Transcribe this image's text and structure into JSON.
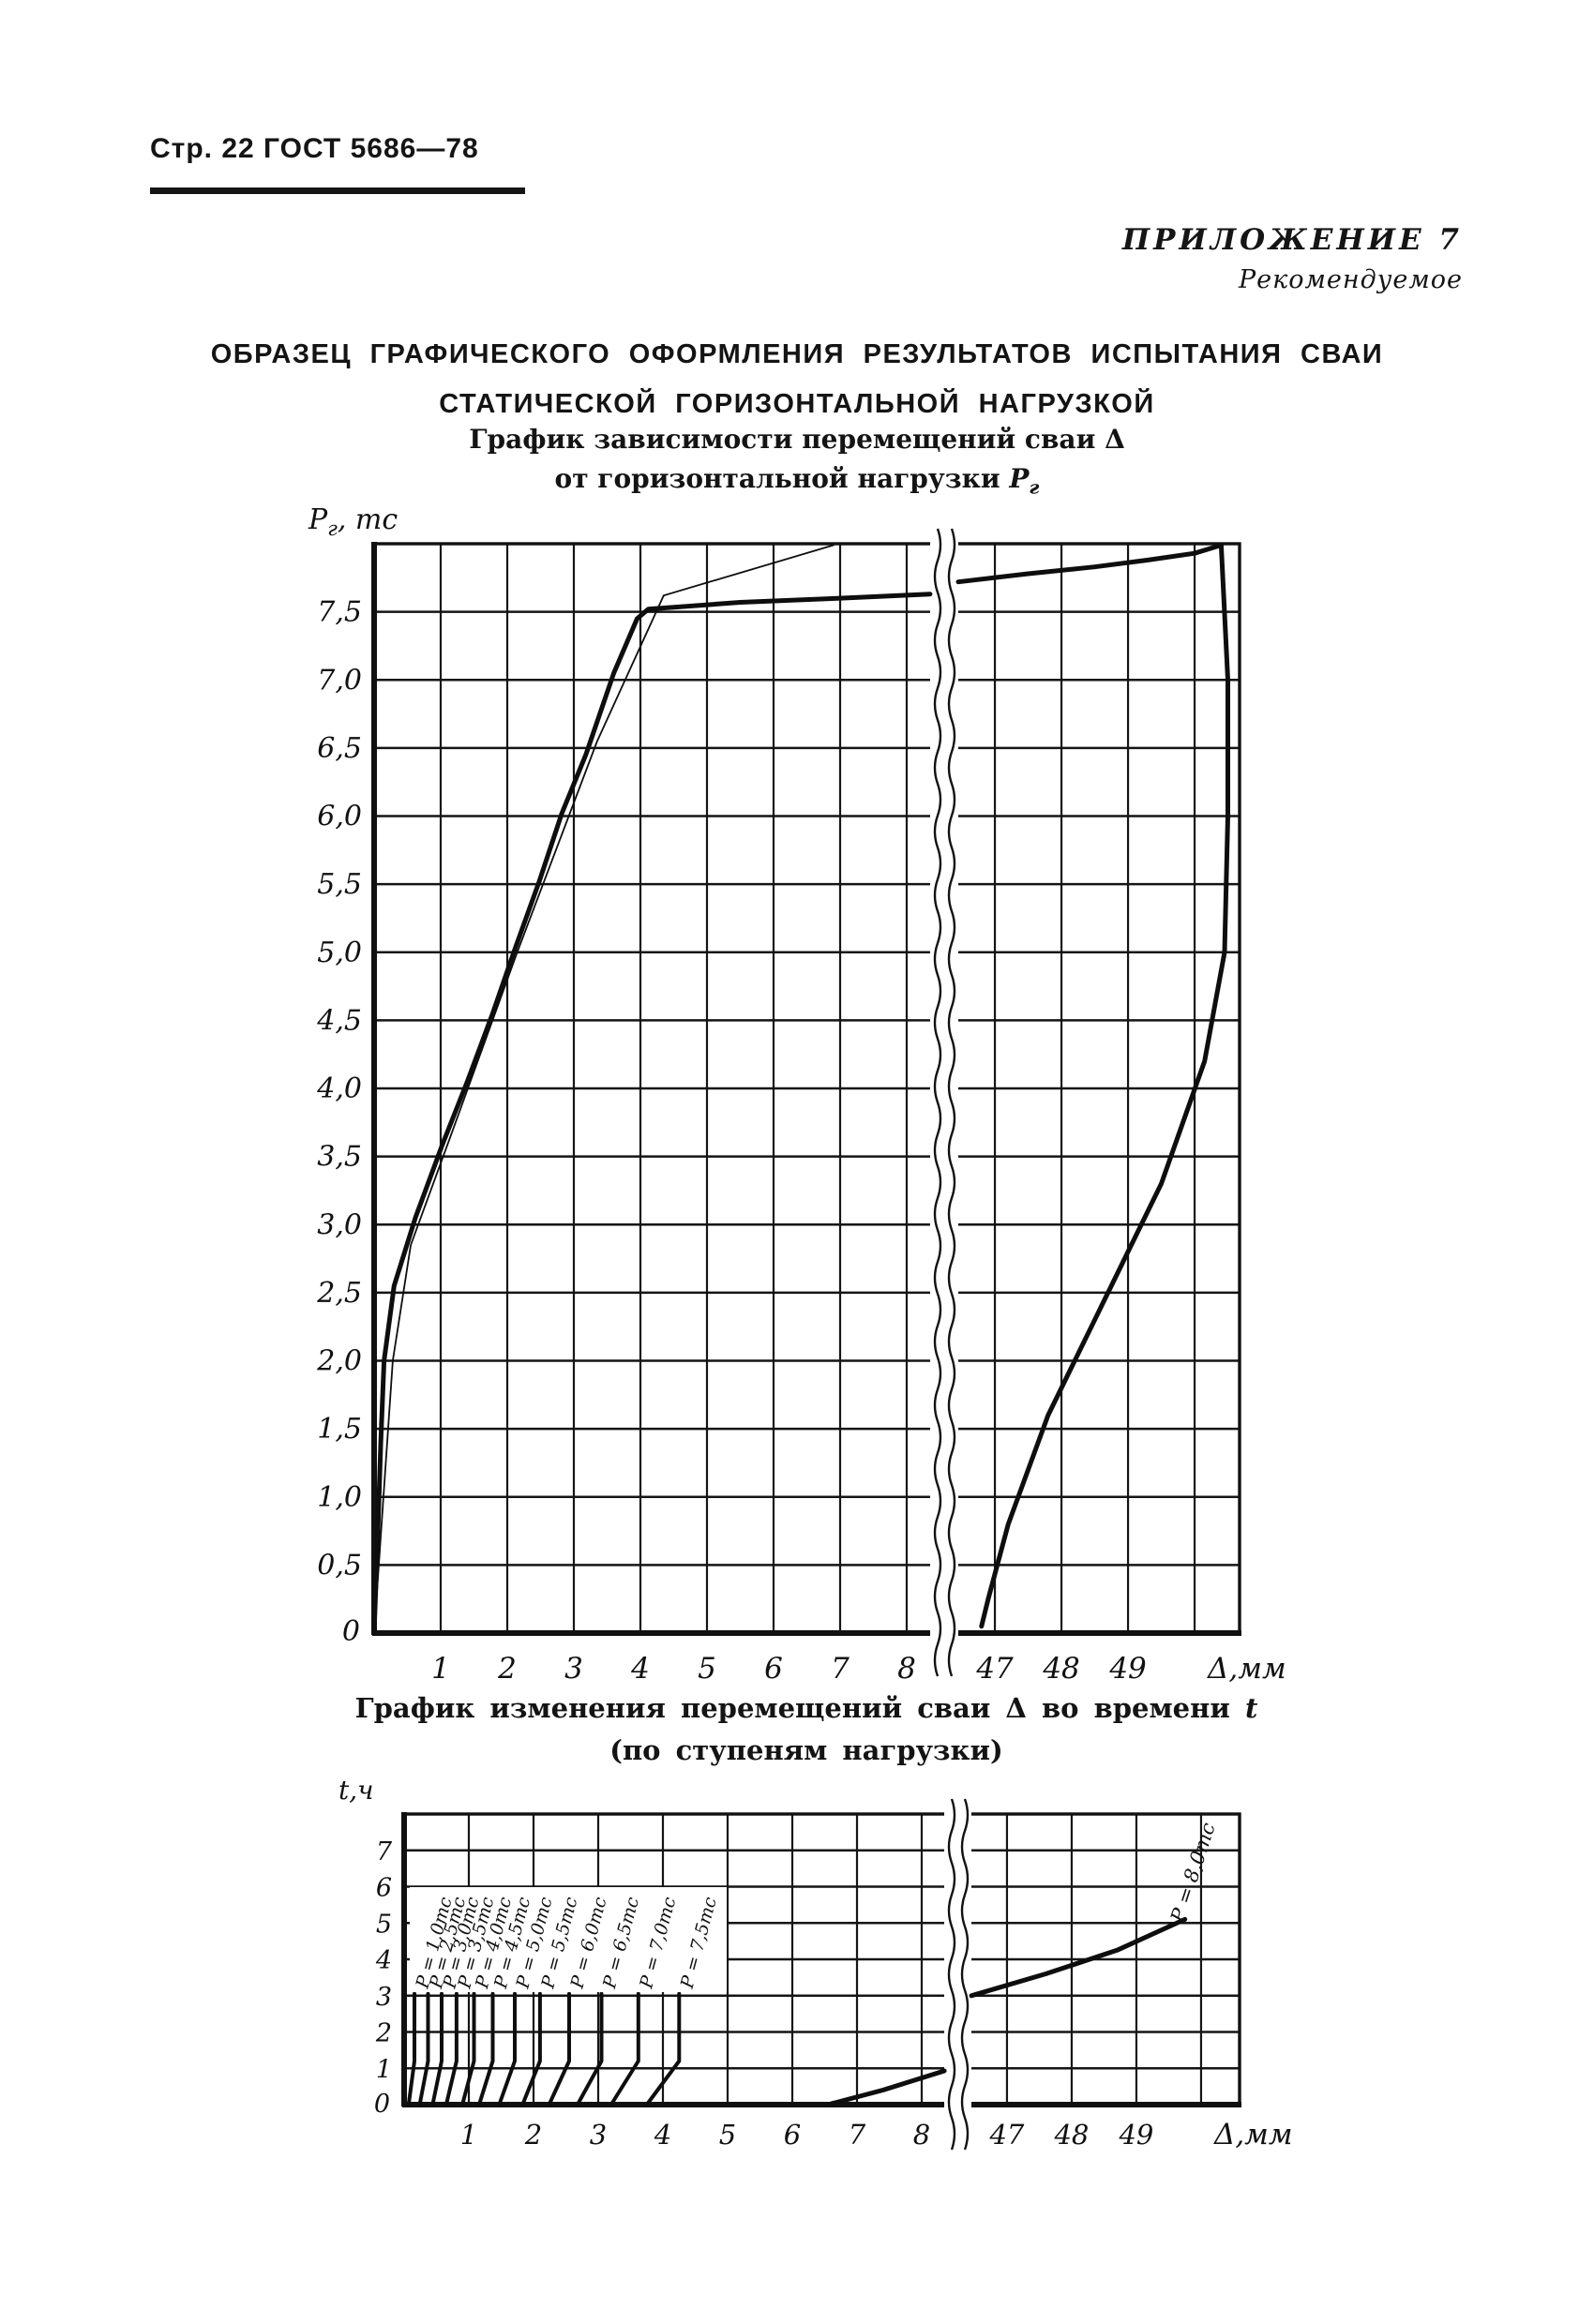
{
  "page": {
    "header": "Стр. 22 ГОСТ 5686—78",
    "annex_label": "ПРИЛОЖЕНИЕ 7",
    "annex_note": "Рекомендуемое",
    "title_line1": "ОБРАЗЕЦ ГРАФИЧЕСКОГО ОФОРМЛЕНИЯ РЕЗУЛЬТАТОВ ИСПЫТАНИЯ СВАИ",
    "title_line2": "СТАТИЧЕСКОЙ ГОРИЗОНТАЛЬНОЙ НАГРУЗКОЙ"
  },
  "chart1": {
    "caption_line1": "График зависимости перемещений сваи Δ",
    "caption_line2_text": "от горизонтальной нагрузки ",
    "caption_line2_symbol": "Р",
    "caption_line2_sub": "г",
    "y_axis_title": {
      "symbol": "Р",
      "sub": "г",
      "unit": ", тс"
    },
    "x_axis_unit": "Δ,мм",
    "origin_label": "0",
    "y_tick_labels": [
      {
        "v": 7.5,
        "t": "7,5"
      },
      {
        "v": 7.0,
        "t": "7,0"
      },
      {
        "v": 6.5,
        "t": "6,5"
      },
      {
        "v": 6.0,
        "t": "6,0"
      },
      {
        "v": 5.5,
        "t": "5,5"
      },
      {
        "v": 5.0,
        "t": "5,0"
      },
      {
        "v": 4.5,
        "t": "4,5"
      },
      {
        "v": 4.0,
        "t": "4,0"
      },
      {
        "v": 3.5,
        "t": "3,5"
      },
      {
        "v": 3.0,
        "t": "3,0"
      },
      {
        "v": 2.5,
        "t": "2,5"
      },
      {
        "v": 2.0,
        "t": "2,0"
      },
      {
        "v": 1.5,
        "t": "1,5"
      },
      {
        "v": 1.0,
        "t": "1,0"
      },
      {
        "v": 0.5,
        "t": "0,5"
      }
    ],
    "x_tick_labels_left": [
      {
        "v": 1,
        "t": "1"
      },
      {
        "v": 2,
        "t": "2"
      },
      {
        "v": 3,
        "t": "3"
      },
      {
        "v": 4,
        "t": "4"
      },
      {
        "v": 5,
        "t": "5"
      },
      {
        "v": 6,
        "t": "6"
      },
      {
        "v": 7,
        "t": "7"
      },
      {
        "v": 8,
        "t": "8"
      }
    ],
    "x_tick_labels_right": [
      {
        "v": 47,
        "t": "47"
      },
      {
        "v": 48,
        "t": "48"
      },
      {
        "v": 49,
        "t": "49"
      }
    ]
  },
  "chart2": {
    "caption_line1_text": "График изменения перемещений сваи Δ во времени ",
    "caption_line1_symbol": "t",
    "caption_line2": "(по ступеням нагрузки)",
    "y_axis_title": {
      "symbol": "t",
      "sub": "",
      "unit": ",ч"
    },
    "x_axis_unit": "Δ,мм",
    "origin_label": "0",
    "y_tick_labels": [
      {
        "v": 7,
        "t": "7"
      },
      {
        "v": 6,
        "t": "6"
      },
      {
        "v": 5,
        "t": "5"
      },
      {
        "v": 4,
        "t": "4"
      },
      {
        "v": 3,
        "t": "3"
      },
      {
        "v": 2,
        "t": "2"
      },
      {
        "v": 1,
        "t": "1"
      }
    ],
    "x_tick_labels_left": [
      {
        "v": 1,
        "t": "1"
      },
      {
        "v": 2,
        "t": "2"
      },
      {
        "v": 3,
        "t": "3"
      },
      {
        "v": 4,
        "t": "4"
      },
      {
        "v": 5,
        "t": "5"
      },
      {
        "v": 6,
        "t": "6"
      },
      {
        "v": 7,
        "t": "7"
      },
      {
        "v": 8,
        "t": "8"
      }
    ],
    "x_tick_labels_right": [
      {
        "v": 47,
        "t": "47"
      },
      {
        "v": 48,
        "t": "48"
      },
      {
        "v": 49,
        "t": "49"
      }
    ],
    "step_labels": [
      "Р = 1,0тс",
      "Р = 2,5тс",
      "Р = 3,0тс",
      "Р = 3,5тс",
      "Р = 4,0тс",
      "Р = 4,5тс",
      "Р = 5,0тс",
      "Р = 5,5тс",
      "Р = 6,0тс",
      "Р = 6,5тс",
      "Р = 7,0тс",
      "Р = 7,5тс"
    ],
    "p8_label": "Р = 8,0тс"
  },
  "chart_data": [
    {
      "type": "line",
      "title": "График зависимости перемещений сваи Δ от горизонтальной нагрузки Рг",
      "xlabel": "Δ, мм",
      "ylabel": "Рг, тс",
      "grid": true,
      "ylim": [
        0,
        8
      ],
      "xlim_left_segment": [
        0,
        8.5
      ],
      "xlim_right_segment": [
        46.4,
        50.8
      ],
      "x_axis_break": [
        8.5,
        46.4
      ],
      "y_gridlines": [
        0.5,
        1,
        1.5,
        2,
        2.5,
        3,
        3.5,
        4,
        4.5,
        5,
        5.5,
        6,
        6.5,
        7,
        7.5
      ],
      "x_gridlines": [
        1,
        2,
        3,
        4,
        5,
        6,
        7,
        8,
        47,
        48,
        49,
        50
      ],
      "series": [
        {
          "name": "loading_branch",
          "style": "thick",
          "points": [
            [
              0,
              0
            ],
            [
              0.06,
              0.8
            ],
            [
              0.1,
              1.4
            ],
            [
              0.15,
              2.0
            ],
            [
              0.3,
              2.55
            ],
            [
              0.62,
              3.05
            ],
            [
              1.02,
              3.58
            ],
            [
              1.4,
              4.05
            ],
            [
              1.78,
              4.55
            ],
            [
              2.12,
              5.03
            ],
            [
              2.48,
              5.52
            ],
            [
              2.82,
              6.02
            ],
            [
              3.18,
              6.45
            ],
            [
              3.6,
              7.05
            ],
            [
              3.95,
              7.45
            ],
            [
              4.12,
              7.52
            ],
            [
              5.5,
              7.57
            ],
            [
              7.0,
              7.6
            ],
            [
              8.35,
              7.63
            ],
            [
              46.45,
              7.72
            ],
            [
              47.5,
              7.78
            ],
            [
              48.5,
              7.83
            ],
            [
              49.3,
              7.88
            ],
            [
              50.0,
              7.93
            ],
            [
              50.4,
              7.99
            ]
          ]
        },
        {
          "name": "reference_line",
          "style": "thin",
          "points": [
            [
              0,
              0
            ],
            [
              0.28,
              2.0
            ],
            [
              0.55,
              2.85
            ],
            [
              1.15,
              3.65
            ],
            [
              2.15,
              5.0
            ],
            [
              3.35,
              6.55
            ],
            [
              4.35,
              7.62
            ],
            [
              6.9,
              7.99
            ]
          ]
        },
        {
          "name": "unloading_branch",
          "style": "thick",
          "points": [
            [
              50.4,
              7.99
            ],
            [
              50.5,
              7.0
            ],
            [
              50.5,
              6.0
            ],
            [
              50.45,
              5.0
            ],
            [
              50.15,
              4.2
            ],
            [
              49.5,
              3.3
            ],
            [
              48.6,
              2.4
            ],
            [
              47.8,
              1.6
            ],
            [
              47.2,
              0.8
            ],
            [
              46.9,
              0.25
            ],
            [
              46.8,
              0.05
            ]
          ]
        }
      ]
    },
    {
      "type": "line",
      "title": "График изменения перемещений сваи Δ во времени t (по ступеням нагрузки)",
      "xlabel": "Δ, мм",
      "ylabel": "t, ч",
      "grid": true,
      "ylim": [
        0,
        8
      ],
      "xlim_left_segment": [
        0,
        8.5
      ],
      "xlim_right_segment": [
        46.4,
        50.7
      ],
      "x_axis_break": [
        8.5,
        46.4
      ],
      "y_gridlines": [
        1,
        2,
        3,
        4,
        5,
        6,
        7
      ],
      "x_gridlines": [
        1,
        2,
        3,
        4,
        5,
        6,
        7,
        8,
        47,
        48,
        49,
        50
      ],
      "series": [
        {
          "name": "Р = 1,0тс",
          "style": "step",
          "points": [
            [
              0.07,
              0
            ],
            [
              0.16,
              1.2
            ],
            [
              0.16,
              3.05
            ]
          ]
        },
        {
          "name": "Р = 2,5тс",
          "style": "step",
          "points": [
            [
              0.24,
              0
            ],
            [
              0.37,
              1.2
            ],
            [
              0.37,
              3.05
            ]
          ]
        },
        {
          "name": "Р = 3,0тс",
          "style": "step",
          "points": [
            [
              0.44,
              0
            ],
            [
              0.58,
              1.2
            ],
            [
              0.58,
              3.05
            ]
          ]
        },
        {
          "name": "Р = 3,5тс",
          "style": "step",
          "points": [
            [
              0.65,
              0
            ],
            [
              0.81,
              1.2
            ],
            [
              0.81,
              3.05
            ]
          ]
        },
        {
          "name": "Р = 4,0тс",
          "style": "step",
          "points": [
            [
              0.9,
              0
            ],
            [
              1.08,
              1.2
            ],
            [
              1.08,
              3.05
            ]
          ]
        },
        {
          "name": "Р = 4,5тс",
          "style": "step",
          "points": [
            [
              1.16,
              0
            ],
            [
              1.37,
              1.2
            ],
            [
              1.37,
              3.05
            ]
          ]
        },
        {
          "name": "Р = 5,0тс",
          "style": "step",
          "points": [
            [
              1.47,
              0
            ],
            [
              1.71,
              1.2
            ],
            [
              1.71,
              3.05
            ]
          ]
        },
        {
          "name": "Р = 5,5тс",
          "style": "step",
          "points": [
            [
              1.83,
              0
            ],
            [
              2.1,
              1.2
            ],
            [
              2.1,
              3.05
            ]
          ]
        },
        {
          "name": "Р = 6,0тс",
          "style": "step",
          "points": [
            [
              2.24,
              0
            ],
            [
              2.55,
              1.2
            ],
            [
              2.55,
              3.05
            ]
          ]
        },
        {
          "name": "Р = 6,5тс",
          "style": "step",
          "points": [
            [
              2.68,
              0
            ],
            [
              3.05,
              1.2
            ],
            [
              3.05,
              3.05
            ]
          ]
        },
        {
          "name": "Р = 7,0тс",
          "style": "step",
          "points": [
            [
              3.2,
              0
            ],
            [
              3.62,
              1.2
            ],
            [
              3.62,
              3.05
            ]
          ]
        },
        {
          "name": "Р = 7,5тс",
          "style": "step",
          "points": [
            [
              3.75,
              0
            ],
            [
              4.25,
              1.2
            ],
            [
              4.25,
              3.05
            ]
          ]
        },
        {
          "name": "Р = 8,0тс",
          "style": "thick",
          "points": [
            [
              6.55,
              0
            ],
            [
              7.4,
              0.4
            ],
            [
              8.35,
              0.93
            ],
            [
              46.45,
              3.0
            ],
            [
              47.6,
              3.6
            ],
            [
              48.7,
              4.25
            ],
            [
              49.75,
              5.1
            ]
          ]
        }
      ]
    }
  ]
}
